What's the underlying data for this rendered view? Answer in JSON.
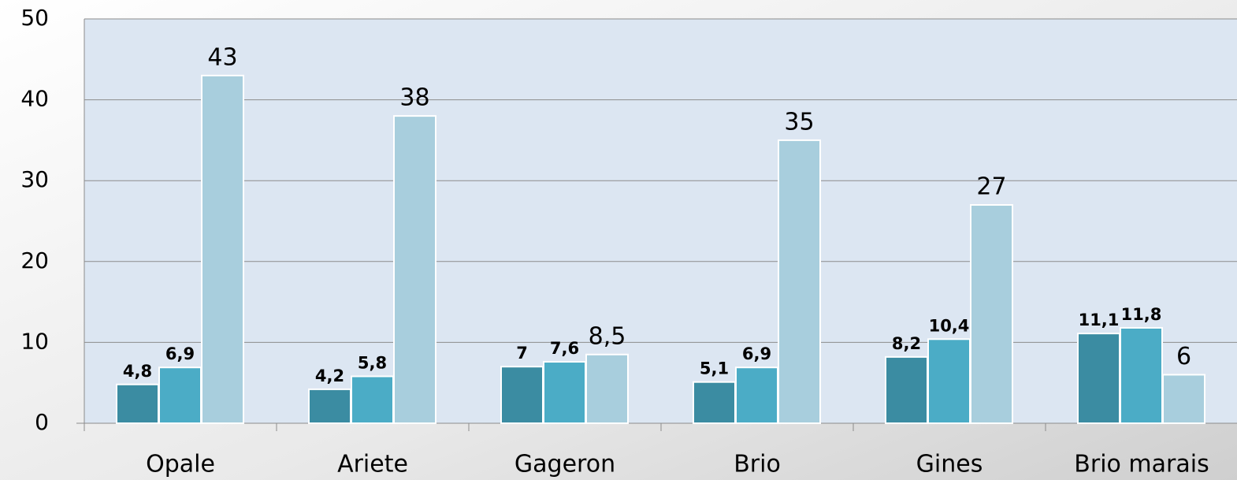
{
  "chart_data": {
    "type": "bar",
    "categories": [
      "Opale",
      "Ariete",
      "Gageron",
      "Brio",
      "Gines",
      "Brio marais"
    ],
    "series": [
      {
        "color": "#3b8ca2",
        "values": [
          4.8,
          4.2,
          7,
          5.1,
          8.2,
          11.1
        ],
        "value_labels": [
          "4,8",
          "4,2",
          "7",
          "5,1",
          "8,2",
          "11,1"
        ]
      },
      {
        "color": "#4bacc6",
        "values": [
          6.9,
          5.8,
          7.6,
          6.9,
          10.4,
          11.8
        ],
        "value_labels": [
          "6,9",
          "5,8",
          "7,6",
          "6,9",
          "10,4",
          "11,8"
        ]
      },
      {
        "color": "#a8cedd",
        "values": [
          43,
          38,
          8.5,
          35,
          27,
          6
        ],
        "value_labels": [
          "43",
          "38",
          "8,5",
          "35",
          "27",
          "6"
        ]
      }
    ],
    "ylim": [
      0,
      50
    ],
    "yticks": [
      0,
      10,
      20,
      30,
      40,
      50
    ],
    "grid": true
  }
}
